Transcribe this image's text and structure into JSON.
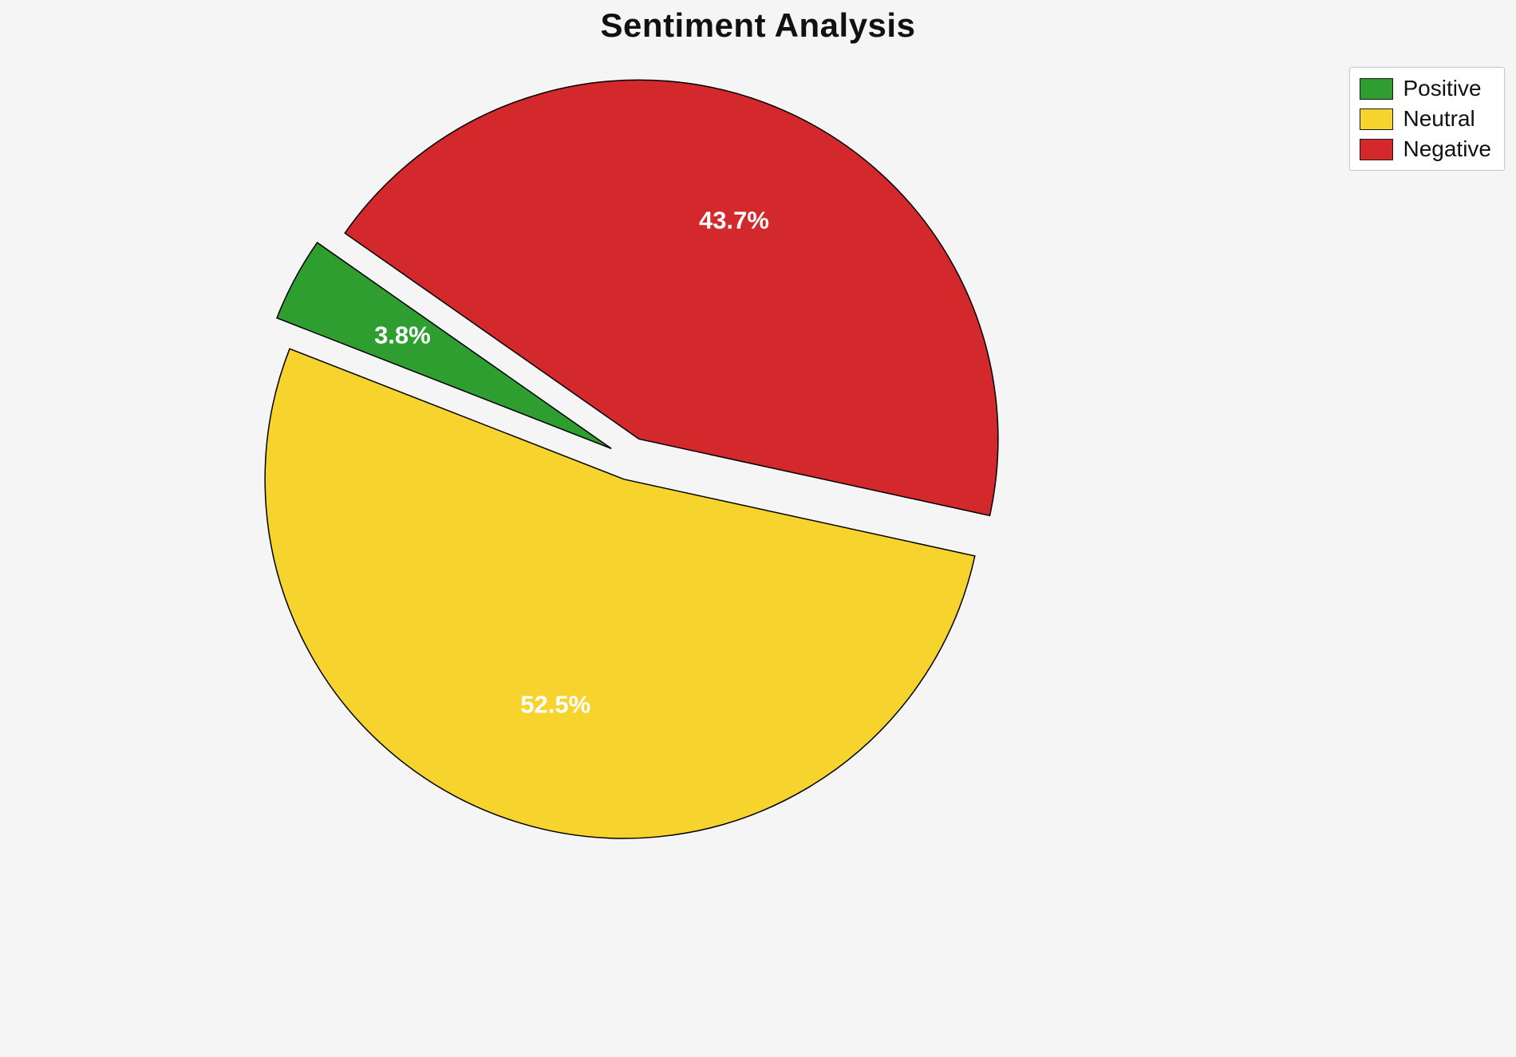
{
  "title": "Sentiment Analysis",
  "chart_data": {
    "type": "pie",
    "labels": [
      "Positive",
      "Neutral",
      "Negative"
    ],
    "values": [
      3.8,
      52.5,
      43.7
    ],
    "value_labels": [
      "3.8%",
      "52.5%",
      "43.7%"
    ],
    "colors": [
      "#2e9e30",
      "#f6d32d",
      "#d3292c"
    ],
    "start_angle": 145,
    "direction": "counterclockwise",
    "explode": 0.06,
    "edge_color": "#000000",
    "label_color": "#ffffff",
    "legend_position": "upper right",
    "background": "#f5f5f5"
  },
  "legend": {
    "items": [
      {
        "label": "Positive",
        "color": "#2e9e30"
      },
      {
        "label": "Neutral",
        "color": "#f6d32d"
      },
      {
        "label": "Negative",
        "color": "#d3292c"
      }
    ]
  }
}
